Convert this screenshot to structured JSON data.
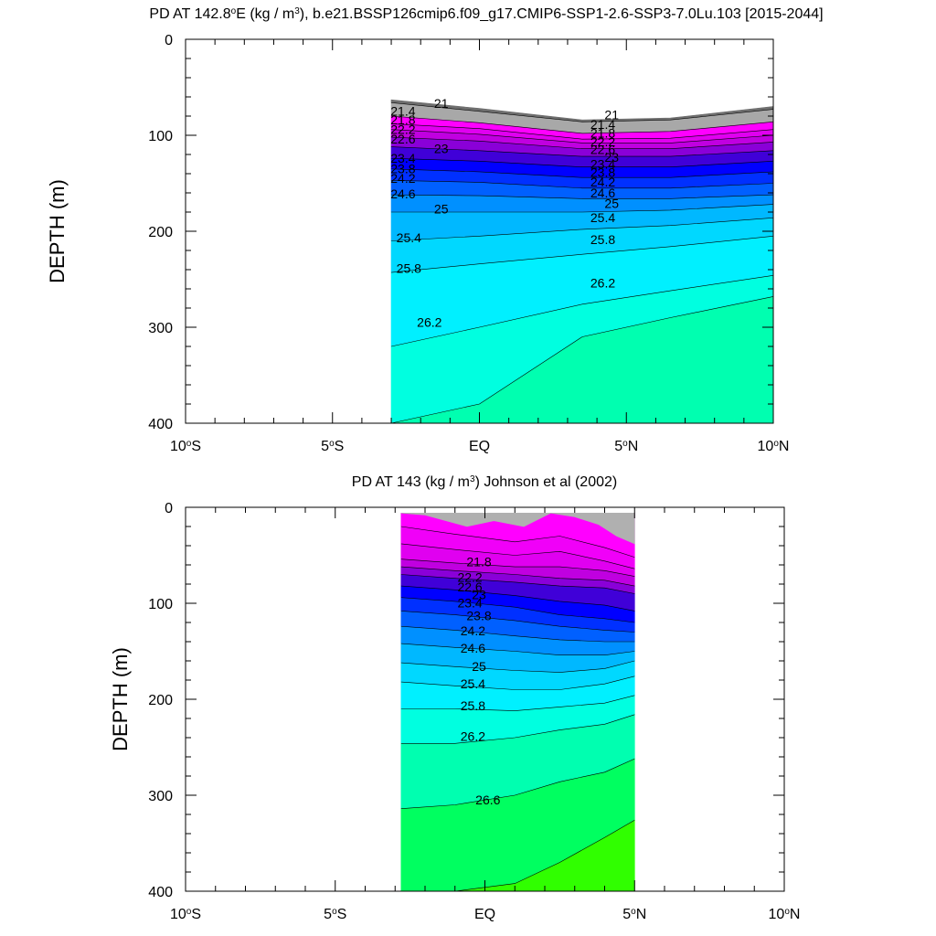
{
  "chart_data": [
    {
      "type": "contour",
      "title_parts": {
        "pre": "PD AT 142.8",
        "deg": "o",
        "mid": "E (kg / m",
        "sup": "3",
        "post": "), b.e21.BSSP126cmip6.f09_g17.CMIP6-SSP1-2.6-SSP3-7.0Lu.103 [2015-2044]"
      },
      "ylabel": "DEPTH (m)",
      "xlim": [
        -10,
        10
      ],
      "ylim": [
        0,
        400
      ],
      "y_inverted": true,
      "x_ticks": [
        {
          "value": -10,
          "num": "10",
          "hemi": "S"
        },
        {
          "value": -5,
          "num": "5",
          "hemi": "S"
        },
        {
          "value": 0,
          "num": "EQ",
          "hemi": ""
        },
        {
          "value": 5,
          "num": "5",
          "hemi": "N"
        },
        {
          "value": 10,
          "num": "10",
          "hemi": "N"
        }
      ],
      "y_ticks": [
        "0",
        "100",
        "200",
        "300",
        "400"
      ],
      "data_extent_lat": [
        -3,
        10
      ],
      "surface_depth": [
        {
          "lat": -3,
          "depth": 63
        },
        {
          "lat": 0,
          "depth": 72
        },
        {
          "lat": 3.5,
          "depth": 84
        },
        {
          "lat": 6.5,
          "depth": 82
        },
        {
          "lat": 10,
          "depth": 70
        }
      ],
      "colors": [
        "#6e6e6e",
        "#a8a8a8",
        "#ff00ff",
        "#e000f0",
        "#c000e0",
        "#8a00d8",
        "#4000d8",
        "#0000ff",
        "#0030ff",
        "#0060ff",
        "#0090ff",
        "#00b8ff",
        "#00d8ff",
        "#00f0ff",
        "#00ffe0",
        "#00ffb0",
        "#00ff60",
        "#30ff00",
        "#a0ff00",
        "#e8ff00",
        "#ffff00",
        "#ffe000",
        "#ffc800",
        "#ffb000",
        "#ff9c00",
        "#ff8800",
        "#ff7000",
        "#ff5000",
        "#ff2800",
        "#ff0000",
        "#e00000",
        "#c00000"
      ],
      "isopycnals": [
        {
          "value": 21,
          "depths": [
            66,
            75,
            86,
            84,
            73
          ],
          "label": "21"
        },
        {
          "value": 21.4,
          "depths": [
            80,
            87,
            98,
            96,
            86
          ],
          "label": "21.4"
        },
        {
          "value": 21.8,
          "depths": [
            88,
            93,
            104,
            103,
            94
          ],
          "label": "21.8"
        },
        {
          "value": 22.2,
          "depths": [
            94,
            99,
            108,
            108,
            100
          ],
          "label": "22.2"
        },
        {
          "value": 22.6,
          "depths": [
            102,
            106,
            114,
            114,
            107
          ],
          "label": "22.6"
        },
        {
          "value": 23,
          "depths": [
            112,
            116,
            122,
            122,
            116
          ],
          "label": "23"
        },
        {
          "value": 23.4,
          "depths": [
            124,
            127,
            133,
            133,
            127
          ],
          "label": "23.4"
        },
        {
          "value": 23.8,
          "depths": [
            135,
            138,
            144,
            144,
            138
          ],
          "label": "23.8"
        },
        {
          "value": 24.2,
          "depths": [
            147,
            149,
            155,
            155,
            150
          ],
          "label": "24.2"
        },
        {
          "value": 24.6,
          "depths": [
            162,
            163,
            166,
            166,
            162
          ],
          "label": "24.6"
        },
        {
          "value": 25,
          "depths": [
            180,
            180,
            180,
            178,
            172
          ],
          "label": "25"
        },
        {
          "value": 25.4,
          "depths": [
            210,
            205,
            198,
            194,
            186
          ],
          "label": "25.4"
        },
        {
          "value": 25.8,
          "depths": [
            243,
            234,
            224,
            216,
            205
          ],
          "label": "25.8"
        },
        {
          "value": 26.2,
          "depths": [
            320,
            300,
            276,
            262,
            246
          ],
          "label": "26.2"
        },
        {
          "value": 26.6,
          "depths": [
            405,
            380,
            310,
            290,
            268
          ],
          "label": ""
        }
      ],
      "labels": [
        {
          "text": "21",
          "lat": -1.3,
          "depth": 68
        },
        {
          "text": "21.4",
          "lat": -2.6,
          "depth": 76
        },
        {
          "text": "21.8",
          "lat": -2.6,
          "depth": 85
        },
        {
          "text": "22.2",
          "lat": -2.6,
          "depth": 95
        },
        {
          "text": "22.6",
          "lat": -2.6,
          "depth": 105
        },
        {
          "text": "23",
          "lat": -1.3,
          "depth": 115
        },
        {
          "text": "23.4",
          "lat": -2.6,
          "depth": 125
        },
        {
          "text": "23.8",
          "lat": -2.6,
          "depth": 136
        },
        {
          "text": "24.2",
          "lat": -2.6,
          "depth": 146
        },
        {
          "text": "24.6",
          "lat": -2.6,
          "depth": 162
        },
        {
          "text": "25",
          "lat": -1.3,
          "depth": 178
        },
        {
          "text": "25.4",
          "lat": -2.4,
          "depth": 208
        },
        {
          "text": "25.8",
          "lat": -2.4,
          "depth": 240
        },
        {
          "text": "26.2",
          "lat": -1.7,
          "depth": 296
        },
        {
          "text": "21",
          "lat": 4.5,
          "depth": 80
        },
        {
          "text": "21.4",
          "lat": 4.2,
          "depth": 90
        },
        {
          "text": "21.8",
          "lat": 4.2,
          "depth": 99
        },
        {
          "text": "22.2",
          "lat": 4.2,
          "depth": 108
        },
        {
          "text": "22.6",
          "lat": 4.2,
          "depth": 116
        },
        {
          "text": "23",
          "lat": 4.5,
          "depth": 124
        },
        {
          "text": "23.4",
          "lat": 4.2,
          "depth": 131
        },
        {
          "text": "23.8",
          "lat": 4.2,
          "depth": 140
        },
        {
          "text": "24.2",
          "lat": 4.2,
          "depth": 150
        },
        {
          "text": "24.6",
          "lat": 4.2,
          "depth": 161
        },
        {
          "text": "25",
          "lat": 4.5,
          "depth": 172
        },
        {
          "text": "25.4",
          "lat": 4.2,
          "depth": 187
        },
        {
          "text": "25.8",
          "lat": 4.2,
          "depth": 210
        },
        {
          "text": "26.2",
          "lat": 4.2,
          "depth": 255
        }
      ]
    },
    {
      "type": "contour",
      "title_parts": {
        "pre": "PD AT 143 (kg / m",
        "sup": "3",
        "post": ") Johnson et al (2002)"
      },
      "ylabel": "DEPTH (m)",
      "xlim": [
        -10,
        10
      ],
      "ylim": [
        0,
        400
      ],
      "y_inverted": true,
      "x_ticks": [
        {
          "value": -10,
          "num": "10",
          "hemi": "S"
        },
        {
          "value": -5,
          "num": "5",
          "hemi": "S"
        },
        {
          "value": 0,
          "num": "EQ",
          "hemi": ""
        },
        {
          "value": 5,
          "num": "5",
          "hemi": "N"
        },
        {
          "value": 10,
          "num": "10",
          "hemi": "N"
        }
      ],
      "y_ticks": [
        "0",
        "100",
        "200",
        "300",
        "400"
      ],
      "data_extent_lat": [
        -2.8,
        5
      ],
      "data_top_depth": 6,
      "gray_top": [
        {
          "lat": -2.8,
          "depth": 6
        },
        {
          "lat": -2,
          "depth": 8
        },
        {
          "lat": -0.6,
          "depth": 20
        },
        {
          "lat": 0.3,
          "depth": 14
        },
        {
          "lat": 1.3,
          "depth": 20
        },
        {
          "lat": 2.2,
          "depth": 6
        },
        {
          "lat": 3,
          "depth": 10
        },
        {
          "lat": 3.8,
          "depth": 18
        },
        {
          "lat": 4.4,
          "depth": 30
        },
        {
          "lat": 5,
          "depth": 38
        }
      ],
      "colors": [
        "#ff00ff",
        "#f000f8",
        "#e000f0",
        "#c000e0",
        "#8a00d8",
        "#4000d8",
        "#0000ff",
        "#0030ff",
        "#0060ff",
        "#0090ff",
        "#00b8ff",
        "#00d8ff",
        "#00f0ff",
        "#00ffe0",
        "#00ffb0",
        "#00ff60",
        "#30ff00",
        "#a0ff00",
        "#e8ff00",
        "#ffff00",
        "#ffe000",
        "#ffc800",
        "#ffb000",
        "#ff9c00",
        "#ff8800",
        "#ff7000",
        "#ff5000",
        "#ff2800",
        "#ff0000",
        "#e00000",
        "#c00000",
        "#b40000"
      ],
      "isopycnals": [
        {
          "value": 21,
          "depths": [
            20,
            28,
            36,
            30,
            42,
            52
          ],
          "label": ""
        },
        {
          "value": 21.4,
          "depths": [
            38,
            44,
            50,
            46,
            56,
            64
          ],
          "label": ""
        },
        {
          "value": 21.8,
          "depths": [
            54,
            58,
            62,
            62,
            66,
            72
          ],
          "label": "21.8"
        },
        {
          "value": 22.2,
          "depths": [
            62,
            66,
            70,
            74,
            76,
            82
          ],
          "label": "22.2"
        },
        {
          "value": 22.6,
          "depths": [
            70,
            74,
            78,
            82,
            84,
            90
          ],
          "label": "22.6"
        },
        {
          "value": 23,
          "depths": [
            82,
            86,
            92,
            98,
            102,
            108
          ],
          "label": "23"
        },
        {
          "value": 23.4,
          "depths": [
            94,
            98,
            104,
            112,
            116,
            120
          ],
          "label": "23.4"
        },
        {
          "value": 23.8,
          "depths": [
            108,
            112,
            118,
            124,
            128,
            130
          ],
          "label": "23.8"
        },
        {
          "value": 24.2,
          "depths": [
            124,
            128,
            134,
            138,
            140,
            140
          ],
          "label": "24.2"
        },
        {
          "value": 24.6,
          "depths": [
            142,
            146,
            150,
            154,
            154,
            150
          ],
          "label": "24.6"
        },
        {
          "value": 25,
          "depths": [
            162,
            166,
            170,
            172,
            168,
            160
          ],
          "label": "25"
        },
        {
          "value": 25.4,
          "depths": [
            182,
            186,
            190,
            190,
            184,
            176
          ],
          "label": "25.4"
        },
        {
          "value": 25.8,
          "depths": [
            210,
            210,
            212,
            208,
            204,
            196
          ],
          "label": "25.8"
        },
        {
          "value": 26.2,
          "depths": [
            246,
            246,
            240,
            232,
            226,
            216
          ],
          "label": "26.2"
        },
        {
          "value": 26.6,
          "depths": [
            314,
            310,
            300,
            286,
            276,
            262
          ],
          "label": "26.6"
        },
        {
          "value": 27,
          "depths": [
            402,
            400,
            392,
            370,
            344,
            326
          ],
          "label": ""
        }
      ],
      "labels": [
        {
          "text": "21.8",
          "lat": -0.2,
          "depth": 58
        },
        {
          "text": "22.2",
          "lat": -0.5,
          "depth": 74
        },
        {
          "text": "22.6",
          "lat": -0.5,
          "depth": 84
        },
        {
          "text": "23",
          "lat": -0.2,
          "depth": 92
        },
        {
          "text": "23.4",
          "lat": -0.5,
          "depth": 101
        },
        {
          "text": "23.8",
          "lat": -0.2,
          "depth": 114
        },
        {
          "text": "24.2",
          "lat": -0.4,
          "depth": 130
        },
        {
          "text": "24.6",
          "lat": -0.4,
          "depth": 148
        },
        {
          "text": "25",
          "lat": -0.2,
          "depth": 167
        },
        {
          "text": "25.4",
          "lat": -0.4,
          "depth": 185
        },
        {
          "text": "25.8",
          "lat": -0.4,
          "depth": 208
        },
        {
          "text": "26.2",
          "lat": -0.4,
          "depth": 240
        },
        {
          "text": "26.6",
          "lat": 0.1,
          "depth": 306
        }
      ]
    }
  ]
}
